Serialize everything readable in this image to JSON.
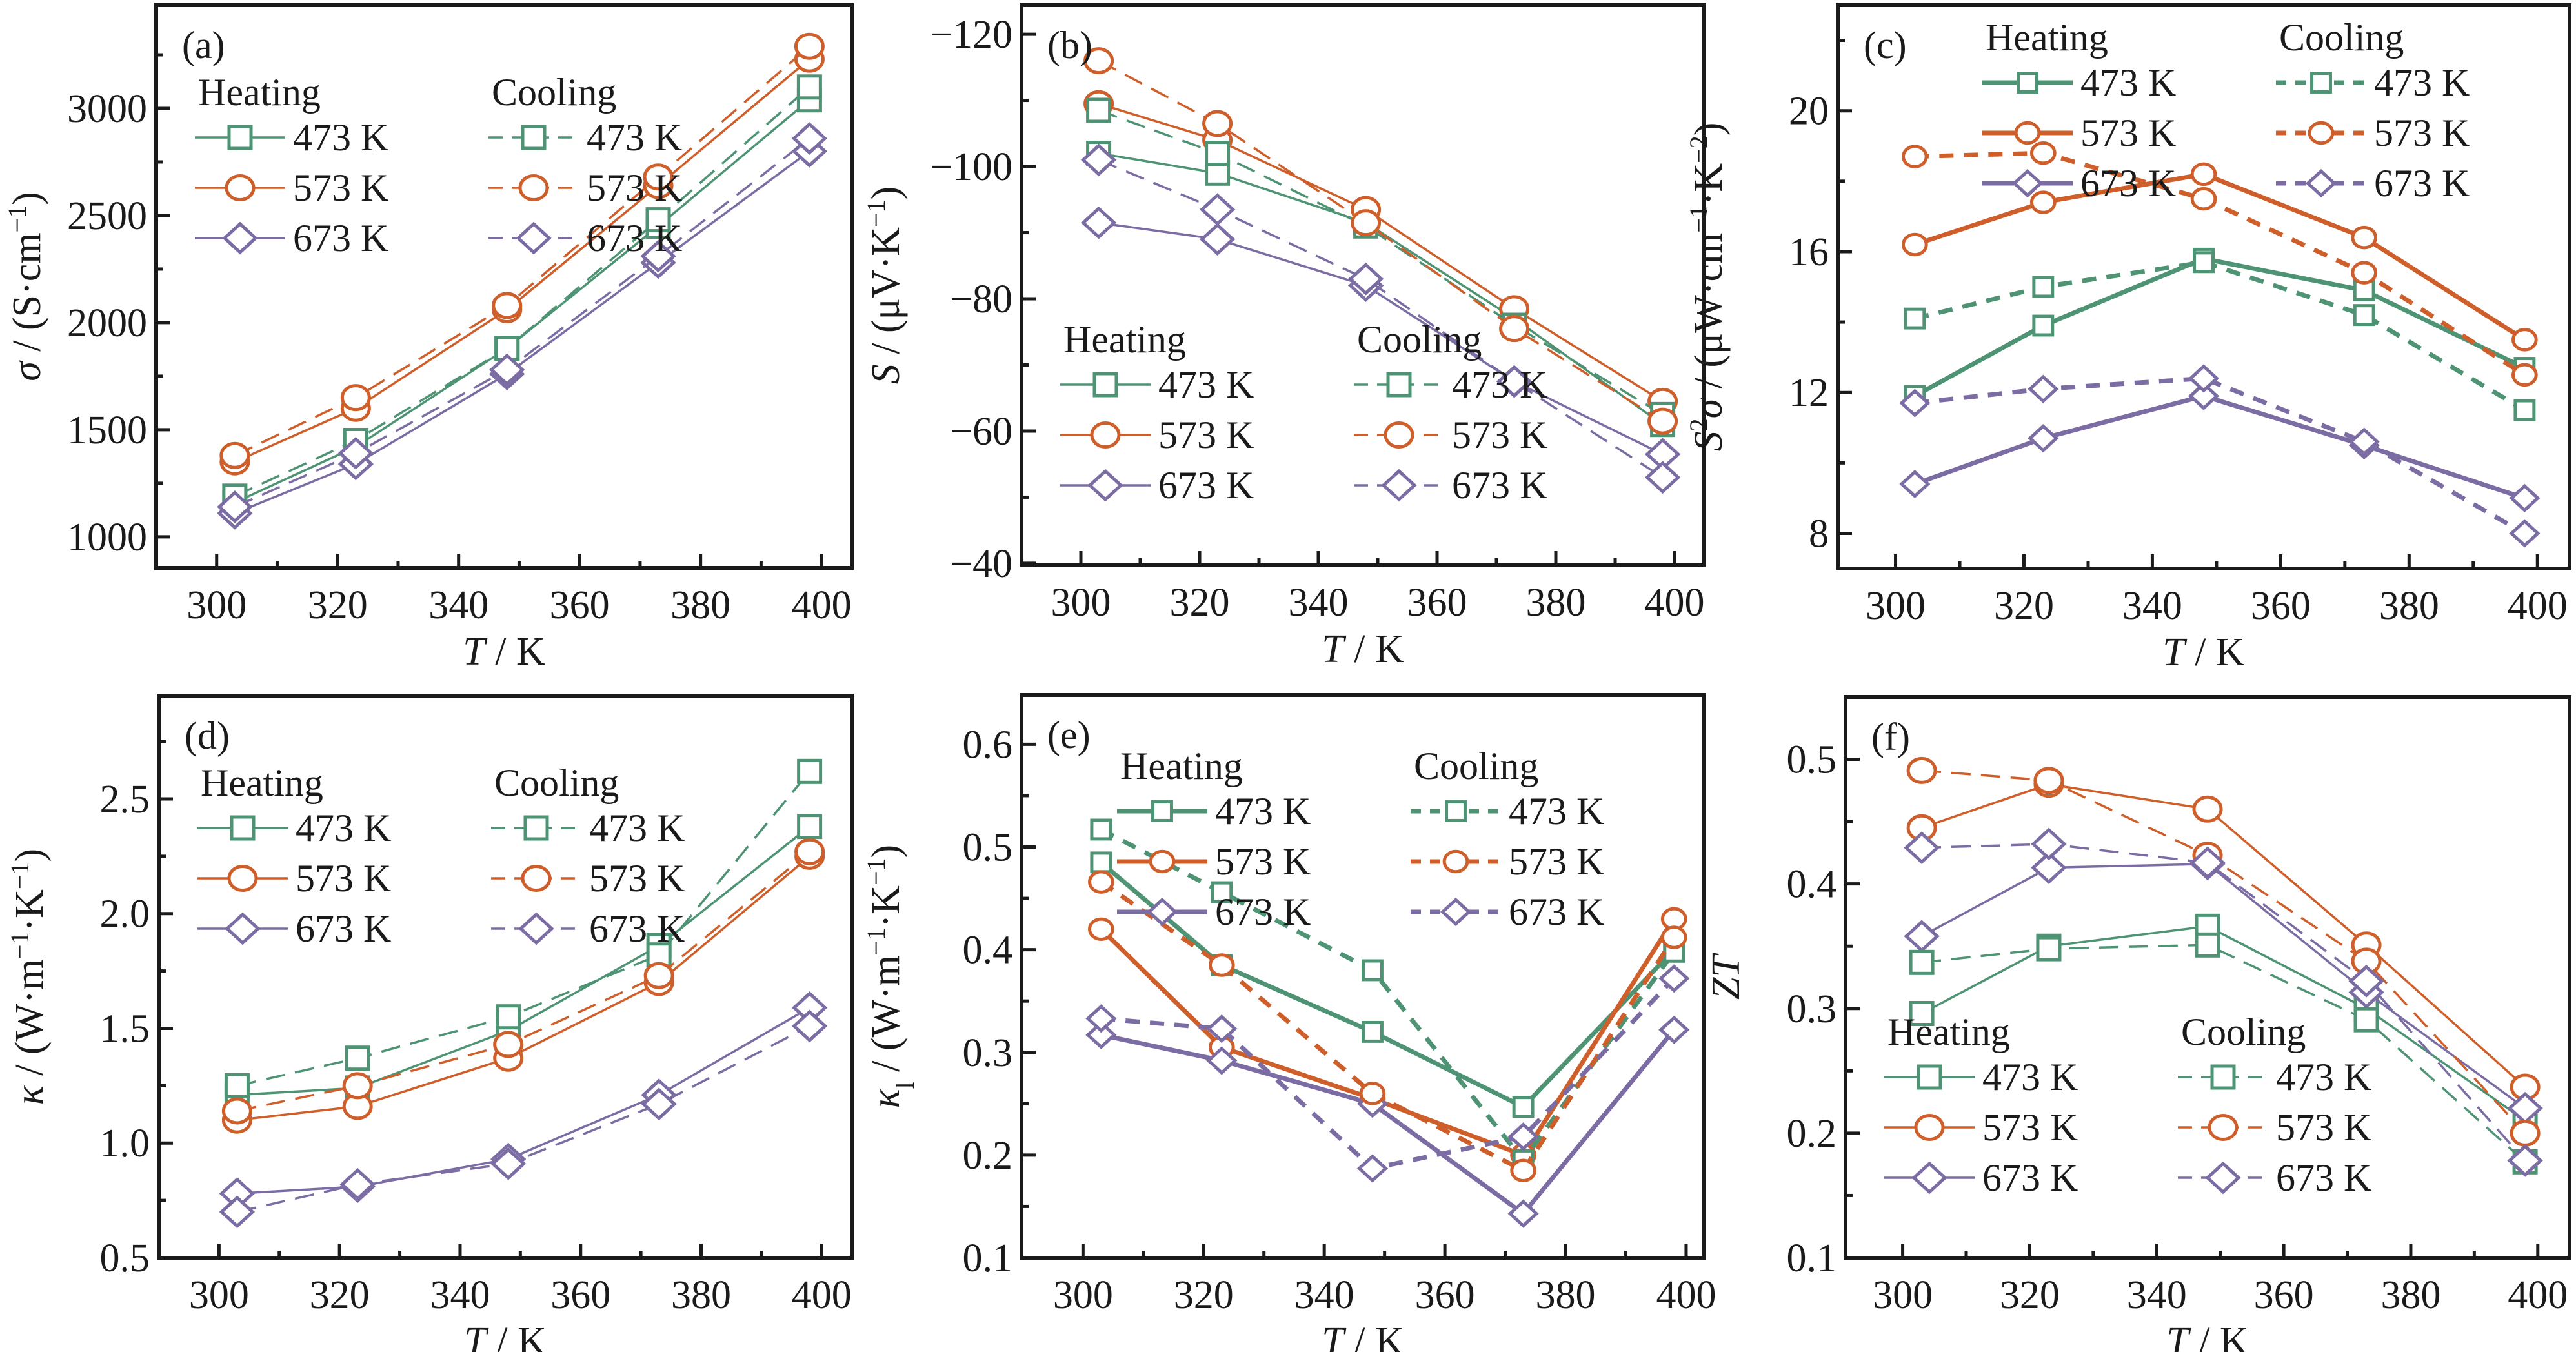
{
  "figure": {
    "colors": {
      "473 K": "#4e9474",
      "573 K": "#cf5f2a",
      "673 K": "#7b6da3",
      "axis": "#1a1a1a"
    },
    "legend": {
      "heating_title": "Heating",
      "cooling_title": "Cooling",
      "entries": [
        {
          "label": "473 K",
          "marker": "square"
        },
        {
          "label": "573 K",
          "marker": "circle"
        },
        {
          "label": "673 K",
          "marker": "diamond"
        }
      ]
    }
  },
  "chart_data": [
    {
      "id": "a",
      "type": "line",
      "panel_label": "(a)",
      "xlabel_italic": "T",
      "xlabel_rest": " / K",
      "ylabel_italic": "σ",
      "ylabel_rest": " / (S·cm",
      "ylabel_sup": "−1",
      "ylabel_end": ")",
      "xlim": [
        290,
        405
      ],
      "ylim": [
        855,
        3482
      ],
      "xticks": [
        300,
        320,
        340,
        360,
        380,
        400
      ],
      "xminor": [
        310,
        330,
        350,
        370,
        390
      ],
      "yticks": [
        1000,
        1500,
        2000,
        2500,
        3000
      ],
      "yminor": [
        1250,
        1750,
        2250,
        2750,
        3250
      ],
      "legend_position": "top-left",
      "grid": false,
      "x": [
        303,
        323,
        348,
        373,
        398
      ],
      "series": [
        {
          "name": "Heating 473 K",
          "mode": "Heating",
          "temp": "473 K",
          "marker": "square",
          "values": [
            1160,
            1420,
            1880,
            2450,
            3040
          ]
        },
        {
          "name": "Heating 573 K",
          "mode": "Heating",
          "temp": "573 K",
          "marker": "circle",
          "values": [
            1350,
            1600,
            2060,
            2640,
            3230
          ]
        },
        {
          "name": "Heating 673 K",
          "mode": "Heating",
          "temp": "673 K",
          "marker": "diamond",
          "values": [
            1110,
            1340,
            1760,
            2280,
            2800
          ]
        },
        {
          "name": "Cooling 473 K",
          "mode": "Cooling",
          "temp": "473 K",
          "marker": "square",
          "values": [
            1190,
            1450,
            1880,
            2480,
            3100
          ]
        },
        {
          "name": "Cooling 573 K",
          "mode": "Cooling",
          "temp": "573 K",
          "marker": "circle",
          "values": [
            1380,
            1650,
            2080,
            2680,
            3290
          ]
        },
        {
          "name": "Cooling 673 K",
          "mode": "Cooling",
          "temp": "673 K",
          "marker": "diamond",
          "values": [
            1140,
            1390,
            1780,
            2310,
            2860
          ]
        }
      ]
    },
    {
      "id": "b",
      "type": "line",
      "panel_label": "(b)",
      "xlabel_italic": "T",
      "xlabel_rest": " / K",
      "ylabel_italic": "S",
      "ylabel_rest": " / (μV·K",
      "ylabel_sup": "−1",
      "ylabel_end": ")",
      "xlim": [
        290,
        405
      ],
      "ylim": [
        -39.7,
        -124.4
      ],
      "xticks": [
        300,
        320,
        340,
        360,
        380,
        400
      ],
      "xminor": [
        310,
        330,
        350,
        370,
        390
      ],
      "yticks": [
        -40,
        -60,
        -80,
        -100,
        -120
      ],
      "yminor": [
        -50,
        -70,
        -90,
        -110
      ],
      "ytick_labels": [
        "−40",
        "−60",
        "−80",
        "−100",
        "−120"
      ],
      "legend_position": "bottom-left",
      "grid": false,
      "x": [
        303,
        323,
        348,
        373,
        398
      ],
      "series": [
        {
          "name": "Heating 473 K",
          "mode": "Heating",
          "temp": "473 K",
          "marker": "square",
          "values": [
            -102,
            -99,
            -91.5,
            -77,
            -61
          ]
        },
        {
          "name": "Heating 573 K",
          "mode": "Heating",
          "temp": "573 K",
          "marker": "circle",
          "values": [
            -109.5,
            -104,
            -93.5,
            -78.5,
            -64.5
          ]
        },
        {
          "name": "Heating 673 K",
          "mode": "Heating",
          "temp": "673 K",
          "marker": "diamond",
          "values": [
            -91.5,
            -89,
            -82,
            -67.5,
            -56.5
          ]
        },
        {
          "name": "Cooling 473 K",
          "mode": "Cooling",
          "temp": "473 K",
          "marker": "square",
          "values": [
            -108.5,
            -102,
            -91,
            -76,
            -62.5
          ]
        },
        {
          "name": "Cooling 573 K",
          "mode": "Cooling",
          "temp": "573 K",
          "marker": "circle",
          "values": [
            -116,
            -106.5,
            -91.5,
            -75.5,
            -61.5
          ]
        },
        {
          "name": "Cooling 673 K",
          "mode": "Cooling",
          "temp": "673 K",
          "marker": "diamond",
          "values": [
            -101,
            -93.5,
            -83,
            -67.5,
            -53
          ]
        }
      ]
    },
    {
      "id": "c",
      "type": "line",
      "panel_label": "(c)",
      "xlabel_italic": "T",
      "xlabel_rest": " / K",
      "ylabel_italic": "S",
      "ylabel_sup_italic": "2",
      "ylabel_italic2": "σ",
      "ylabel_rest": " / (μW·cm",
      "ylabel_sup": "−1",
      "ylabel_mid": "·K",
      "ylabel_sup2": "−2",
      "ylabel_end": ")",
      "xlim": [
        291,
        405
      ],
      "ylim": [
        7.0,
        23.0
      ],
      "xticks": [
        300,
        320,
        340,
        360,
        380,
        400
      ],
      "xminor": [
        310,
        330,
        350,
        370,
        390
      ],
      "yticks": [
        8,
        12,
        16,
        20
      ],
      "yminor": [
        10,
        14,
        18,
        22
      ],
      "legend_position": "top-right",
      "grid": false,
      "x": [
        303,
        323,
        348,
        373,
        398
      ],
      "series": [
        {
          "name": "Heating 473 K",
          "mode": "Heating",
          "temp": "473 K",
          "marker": "square",
          "values": [
            11.9,
            13.9,
            15.8,
            14.9,
            12.7
          ]
        },
        {
          "name": "Heating 573 K",
          "mode": "Heating",
          "temp": "573 K",
          "marker": "circle",
          "values": [
            16.2,
            17.4,
            18.2,
            16.4,
            13.5
          ]
        },
        {
          "name": "Heating 673 K",
          "mode": "Heating",
          "temp": "673 K",
          "marker": "diamond",
          "values": [
            9.4,
            10.7,
            11.9,
            10.5,
            9.0
          ]
        },
        {
          "name": "Cooling 473 K",
          "mode": "Cooling",
          "temp": "473 K",
          "marker": "square",
          "values": [
            14.1,
            15.0,
            15.7,
            14.2,
            11.5
          ]
        },
        {
          "name": "Cooling 573 K",
          "mode": "Cooling",
          "temp": "573 K",
          "marker": "circle",
          "values": [
            18.7,
            18.8,
            17.5,
            15.4,
            12.5
          ]
        },
        {
          "name": "Cooling 673 K",
          "mode": "Cooling",
          "temp": "673 K",
          "marker": "diamond",
          "values": [
            11.7,
            12.1,
            12.4,
            10.6,
            8.0
          ]
        }
      ]
    },
    {
      "id": "d",
      "type": "line",
      "panel_label": "(d)",
      "xlabel_italic": "T",
      "xlabel_rest": " / K",
      "ylabel_italic": "κ",
      "ylabel_rest": " / (W·m",
      "ylabel_sup": "−1",
      "ylabel_mid": "·K",
      "ylabel_sup2": "−1",
      "ylabel_end": ")",
      "xlim": [
        290,
        405
      ],
      "ylim": [
        0.5,
        2.95
      ],
      "xticks": [
        300,
        320,
        340,
        360,
        380,
        400
      ],
      "xminor": [
        310,
        330,
        350,
        370,
        390
      ],
      "yticks": [
        0.5,
        1.0,
        1.5,
        2.0,
        2.5
      ],
      "yminor": [
        0.75,
        1.25,
        1.75,
        2.25,
        2.75
      ],
      "ytick_labels": [
        "0.5",
        "1.0",
        "1.5",
        "2.0",
        "2.5"
      ],
      "legend_position": "top-left",
      "grid": false,
      "x": [
        303,
        323,
        348,
        373,
        398
      ],
      "series": [
        {
          "name": "Heating 473 K",
          "mode": "Heating",
          "temp": "473 K",
          "marker": "square",
          "values": [
            1.21,
            1.24,
            1.49,
            1.86,
            2.38
          ]
        },
        {
          "name": "Heating 573 K",
          "mode": "Heating",
          "temp": "573 K",
          "marker": "circle",
          "values": [
            1.1,
            1.16,
            1.37,
            1.7,
            2.25
          ]
        },
        {
          "name": "Heating 673 K",
          "mode": "Heating",
          "temp": "673 K",
          "marker": "diamond",
          "values": [
            0.78,
            0.81,
            0.93,
            1.21,
            1.59
          ]
        },
        {
          "name": "Cooling 473 K",
          "mode": "Cooling",
          "temp": "473 K",
          "marker": "square",
          "values": [
            1.25,
            1.37,
            1.55,
            1.82,
            2.62
          ]
        },
        {
          "name": "Cooling 573 K",
          "mode": "Cooling",
          "temp": "573 K",
          "marker": "circle",
          "values": [
            1.14,
            1.25,
            1.43,
            1.73,
            2.27
          ]
        },
        {
          "name": "Cooling 673 K",
          "mode": "Cooling",
          "temp": "673 K",
          "marker": "diamond",
          "values": [
            0.7,
            0.82,
            0.91,
            1.17,
            1.51
          ]
        }
      ]
    },
    {
      "id": "e",
      "type": "line",
      "panel_label": "(e)",
      "xlabel_italic": "T",
      "xlabel_rest": " / K",
      "ylabel_italic": "κ",
      "ylabel_sub": "l",
      "ylabel_rest": " / (W·m",
      "ylabel_sup": "−1",
      "ylabel_mid": "·K",
      "ylabel_sup2": "−1",
      "ylabel_end": ")",
      "xlim": [
        289.8,
        403
      ],
      "ylim": [
        0.1,
        0.648
      ],
      "xticks": [
        300,
        320,
        340,
        360,
        380,
        400
      ],
      "xminor": [
        310,
        330,
        350,
        370,
        390
      ],
      "yticks": [
        0.1,
        0.2,
        0.3,
        0.4,
        0.5,
        0.6
      ],
      "yminor": [
        0.15,
        0.25,
        0.35,
        0.45,
        0.55
      ],
      "legend_position": "top-right",
      "grid": false,
      "x": [
        303,
        323,
        348,
        373,
        398
      ],
      "series": [
        {
          "name": "Heating 473 K",
          "mode": "Heating",
          "temp": "473 K",
          "marker": "square",
          "values": [
            0.485,
            0.385,
            0.32,
            0.247,
            0.4
          ]
        },
        {
          "name": "Heating 573 K",
          "mode": "Heating",
          "temp": "573 K",
          "marker": "circle",
          "values": [
            0.42,
            0.305,
            0.255,
            0.2,
            0.43
          ]
        },
        {
          "name": "Heating 673 K",
          "mode": "Heating",
          "temp": "673 K",
          "marker": "diamond",
          "values": [
            0.317,
            0.292,
            0.25,
            0.143,
            0.322
          ]
        },
        {
          "name": "Cooling 473 K",
          "mode": "Cooling",
          "temp": "473 K",
          "marker": "square",
          "values": [
            0.517,
            0.456,
            0.38,
            0.195,
            0.398
          ]
        },
        {
          "name": "Cooling 573 K",
          "mode": "Cooling",
          "temp": "573 K",
          "marker": "circle",
          "values": [
            0.466,
            0.385,
            0.26,
            0.185,
            0.412
          ]
        },
        {
          "name": "Cooling 673 K",
          "mode": "Cooling",
          "temp": "673 K",
          "marker": "diamond",
          "values": [
            0.333,
            0.323,
            0.187,
            0.218,
            0.372
          ]
        }
      ]
    },
    {
      "id": "f",
      "type": "line",
      "panel_label": "(f)",
      "xlabel_italic": "T",
      "xlabel_rest": " / K",
      "ylabel_italic": "ZT",
      "xlim": [
        291,
        405
      ],
      "ylim": [
        0.1,
        0.55
      ],
      "xticks": [
        300,
        320,
        340,
        360,
        380,
        400
      ],
      "xminor": [
        310,
        330,
        350,
        370,
        390
      ],
      "yticks": [
        0.1,
        0.2,
        0.3,
        0.4,
        0.5
      ],
      "yminor": [
        0.15,
        0.25,
        0.35,
        0.45
      ],
      "legend_position": "bottom-left",
      "grid": false,
      "x": [
        303,
        323,
        348,
        373,
        398
      ],
      "series": [
        {
          "name": "Heating 473 K",
          "mode": "Heating",
          "temp": "473 K",
          "marker": "square",
          "values": [
            0.296,
            0.35,
            0.366,
            0.3,
            0.21
          ]
        },
        {
          "name": "Heating 573 K",
          "mode": "Heating",
          "temp": "573 K",
          "marker": "circle",
          "values": [
            0.445,
            0.48,
            0.46,
            0.351,
            0.237
          ]
        },
        {
          "name": "Heating 673 K",
          "mode": "Heating",
          "temp": "673 K",
          "marker": "diamond",
          "values": [
            0.358,
            0.413,
            0.416,
            0.313,
            0.22
          ]
        },
        {
          "name": "Cooling 473 K",
          "mode": "Cooling",
          "temp": "473 K",
          "marker": "square",
          "values": [
            0.337,
            0.348,
            0.351,
            0.291,
            0.177
          ]
        },
        {
          "name": "Cooling 573 K",
          "mode": "Cooling",
          "temp": "573 K",
          "marker": "circle",
          "values": [
            0.491,
            0.483,
            0.423,
            0.338,
            0.2
          ]
        },
        {
          "name": "Cooling 673 K",
          "mode": "Cooling",
          "temp": "673 K",
          "marker": "diamond",
          "values": [
            0.429,
            0.432,
            0.417,
            0.322,
            0.178
          ]
        }
      ]
    }
  ]
}
